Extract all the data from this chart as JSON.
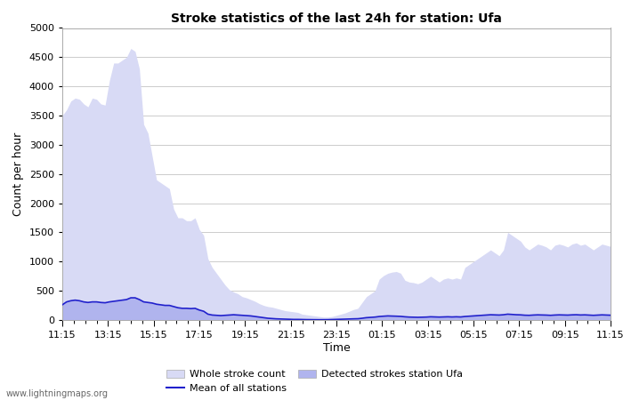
{
  "title": "Stroke statistics of the last 24h for station: Ufa",
  "xlabel": "Time",
  "ylabel": "Count per hour",
  "ylim": [
    0,
    5000
  ],
  "yticks": [
    0,
    500,
    1000,
    1500,
    2000,
    2500,
    3000,
    3500,
    4000,
    4500,
    5000
  ],
  "xtick_labels": [
    "11:15",
    "13:15",
    "15:15",
    "17:15",
    "19:15",
    "21:15",
    "23:15",
    "01:15",
    "03:15",
    "05:15",
    "07:15",
    "09:15",
    "11:15"
  ],
  "watermark": "www.lightningmaps.org",
  "whole_stroke_color": "#d8daf5",
  "detected_stroke_color": "#b0b4ee",
  "mean_line_color": "#2020cc",
  "background_color": "#ffffff",
  "whole_stroke_values": [
    3500,
    3600,
    3750,
    3800,
    3780,
    3700,
    3650,
    3800,
    3780,
    3700,
    3680,
    4100,
    4400,
    4400,
    4450,
    4500,
    4650,
    4600,
    4300,
    3350,
    3200,
    2800,
    2400,
    2350,
    2300,
    2250,
    1900,
    1750,
    1750,
    1700,
    1700,
    1750,
    1550,
    1450,
    1050,
    900,
    800,
    700,
    600,
    520,
    480,
    450,
    400,
    380,
    350,
    320,
    280,
    250,
    230,
    220,
    200,
    180,
    160,
    150,
    140,
    130,
    100,
    90,
    80,
    70,
    60,
    50,
    50,
    60,
    80,
    100,
    120,
    150,
    180,
    200,
    300,
    400,
    450,
    500,
    700,
    760,
    800,
    820,
    830,
    800,
    680,
    650,
    640,
    620,
    650,
    700,
    750,
    700,
    650,
    700,
    720,
    700,
    720,
    700,
    900,
    950,
    1000,
    1050,
    1100,
    1150,
    1200,
    1150,
    1100,
    1200,
    1500,
    1450,
    1400,
    1350,
    1250,
    1200,
    1250,
    1300,
    1280,
    1250,
    1200,
    1280,
    1300,
    1280,
    1250,
    1300,
    1320,
    1280,
    1300,
    1250,
    1200,
    1250,
    1300,
    1280,
    1260
  ],
  "detected_stroke_values": [
    260,
    310,
    330,
    340,
    330,
    310,
    300,
    310,
    310,
    300,
    295,
    310,
    320,
    330,
    340,
    350,
    380,
    380,
    350,
    310,
    300,
    290,
    270,
    260,
    250,
    250,
    230,
    210,
    200,
    200,
    195,
    200,
    170,
    150,
    100,
    85,
    80,
    75,
    80,
    85,
    90,
    85,
    80,
    75,
    70,
    60,
    50,
    40,
    30,
    25,
    20,
    18,
    15,
    12,
    10,
    10,
    8,
    7,
    6,
    5,
    5,
    5,
    6,
    8,
    10,
    12,
    15,
    18,
    20,
    22,
    30,
    40,
    45,
    50,
    60,
    65,
    70,
    68,
    65,
    62,
    55,
    50,
    48,
    46,
    48,
    50,
    55,
    52,
    50,
    52,
    55,
    52,
    55,
    52,
    60,
    65,
    70,
    75,
    80,
    85,
    90,
    88,
    85,
    90,
    100,
    95,
    90,
    88,
    82,
    80,
    85,
    88,
    86,
    84,
    80,
    85,
    88,
    86,
    84,
    88,
    90,
    86,
    88,
    84,
    80,
    84,
    88,
    85,
    82
  ],
  "mean_line_values": [
    260,
    310,
    330,
    340,
    330,
    310,
    300,
    310,
    310,
    300,
    295,
    310,
    320,
    330,
    340,
    350,
    380,
    380,
    350,
    310,
    300,
    290,
    270,
    260,
    250,
    250,
    230,
    210,
    200,
    200,
    195,
    200,
    170,
    150,
    100,
    85,
    80,
    75,
    80,
    85,
    90,
    85,
    80,
    75,
    70,
    60,
    50,
    40,
    30,
    25,
    20,
    18,
    15,
    12,
    10,
    10,
    8,
    7,
    6,
    5,
    5,
    5,
    6,
    8,
    10,
    12,
    15,
    18,
    20,
    22,
    30,
    40,
    45,
    50,
    60,
    65,
    70,
    68,
    65,
    62,
    55,
    50,
    48,
    46,
    48,
    50,
    55,
    52,
    50,
    52,
    55,
    52,
    55,
    52,
    60,
    65,
    70,
    75,
    80,
    85,
    90,
    88,
    85,
    90,
    100,
    95,
    90,
    88,
    82,
    80,
    85,
    88,
    86,
    84,
    80,
    85,
    88,
    86,
    84,
    88,
    90,
    86,
    88,
    84,
    80,
    84,
    88,
    85,
    82
  ]
}
